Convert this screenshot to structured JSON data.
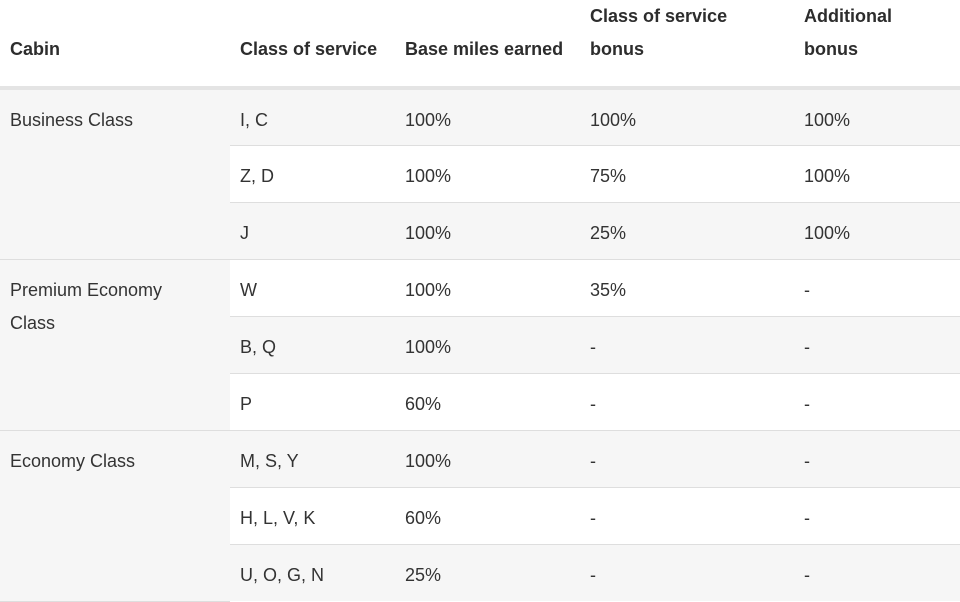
{
  "headers": {
    "cabin": "Cabin",
    "class_of_service": "Class of service",
    "base_miles": "Base miles earned",
    "cos_bonus_line1": "Class of service",
    "cos_bonus_line2": "bonus",
    "additional_line1": "Additional",
    "additional_line2": "bonus"
  },
  "groups": [
    {
      "cabin_line1": "Business Class",
      "cabin_line2": "",
      "rows": [
        {
          "class": "I, C",
          "base": "100%",
          "cos_bonus": "100%",
          "additional": "100%"
        },
        {
          "class": "Z, D",
          "base": "100%",
          "cos_bonus": "75%",
          "additional": "100%"
        },
        {
          "class": "J",
          "base": "100%",
          "cos_bonus": "25%",
          "additional": "100%"
        }
      ]
    },
    {
      "cabin_line1": "Premium Economy",
      "cabin_line2": "Class",
      "rows": [
        {
          "class": "W",
          "base": "100%",
          "cos_bonus": "35%",
          "additional": "-"
        },
        {
          "class": "B, Q",
          "base": "100%",
          "cos_bonus": "-",
          "additional": "-"
        },
        {
          "class": "P",
          "base": "60%",
          "cos_bonus": "-",
          "additional": "-"
        }
      ]
    },
    {
      "cabin_line1": "Economy Class",
      "cabin_line2": "",
      "rows": [
        {
          "class": "M, S, Y",
          "base": "100%",
          "cos_bonus": "-",
          "additional": "-"
        },
        {
          "class": "H, L, V, K",
          "base": "60%",
          "cos_bonus": "-",
          "additional": "-"
        },
        {
          "class": "U, O, G, N",
          "base": "25%",
          "cos_bonus": "-",
          "additional": "-"
        }
      ]
    }
  ]
}
